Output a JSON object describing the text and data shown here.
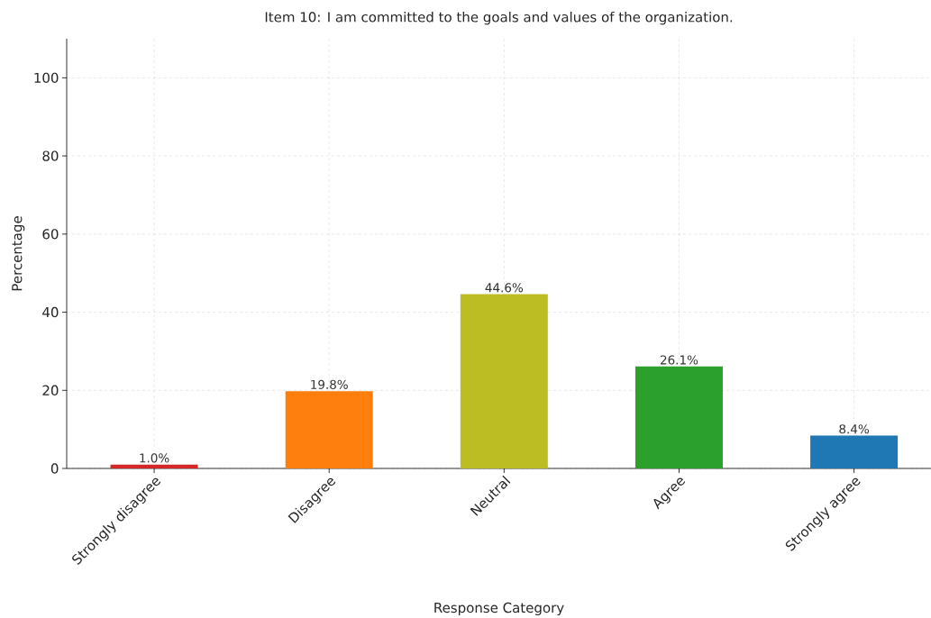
{
  "chart_data": {
    "type": "bar",
    "title": "Item 10: I am committed to the goals and values of the organization.",
    "xlabel": "Response Category",
    "ylabel": "Percentage",
    "categories": [
      "Strongly disagree",
      "Disagree",
      "Neutral",
      "Agree",
      "Strongly agree"
    ],
    "values": [
      1.0,
      19.8,
      44.6,
      26.1,
      8.4
    ],
    "colors": [
      "#d62728",
      "#ff7f0e",
      "#bcbd22",
      "#2ca02c",
      "#1f77b4"
    ],
    "value_labels": [
      "1.0%",
      "19.8%",
      "44.6%",
      "26.1%",
      "8.4%"
    ],
    "ylim": [
      0,
      110
    ],
    "yticks": [
      0,
      20,
      40,
      60,
      80,
      100
    ],
    "grid": true
  }
}
